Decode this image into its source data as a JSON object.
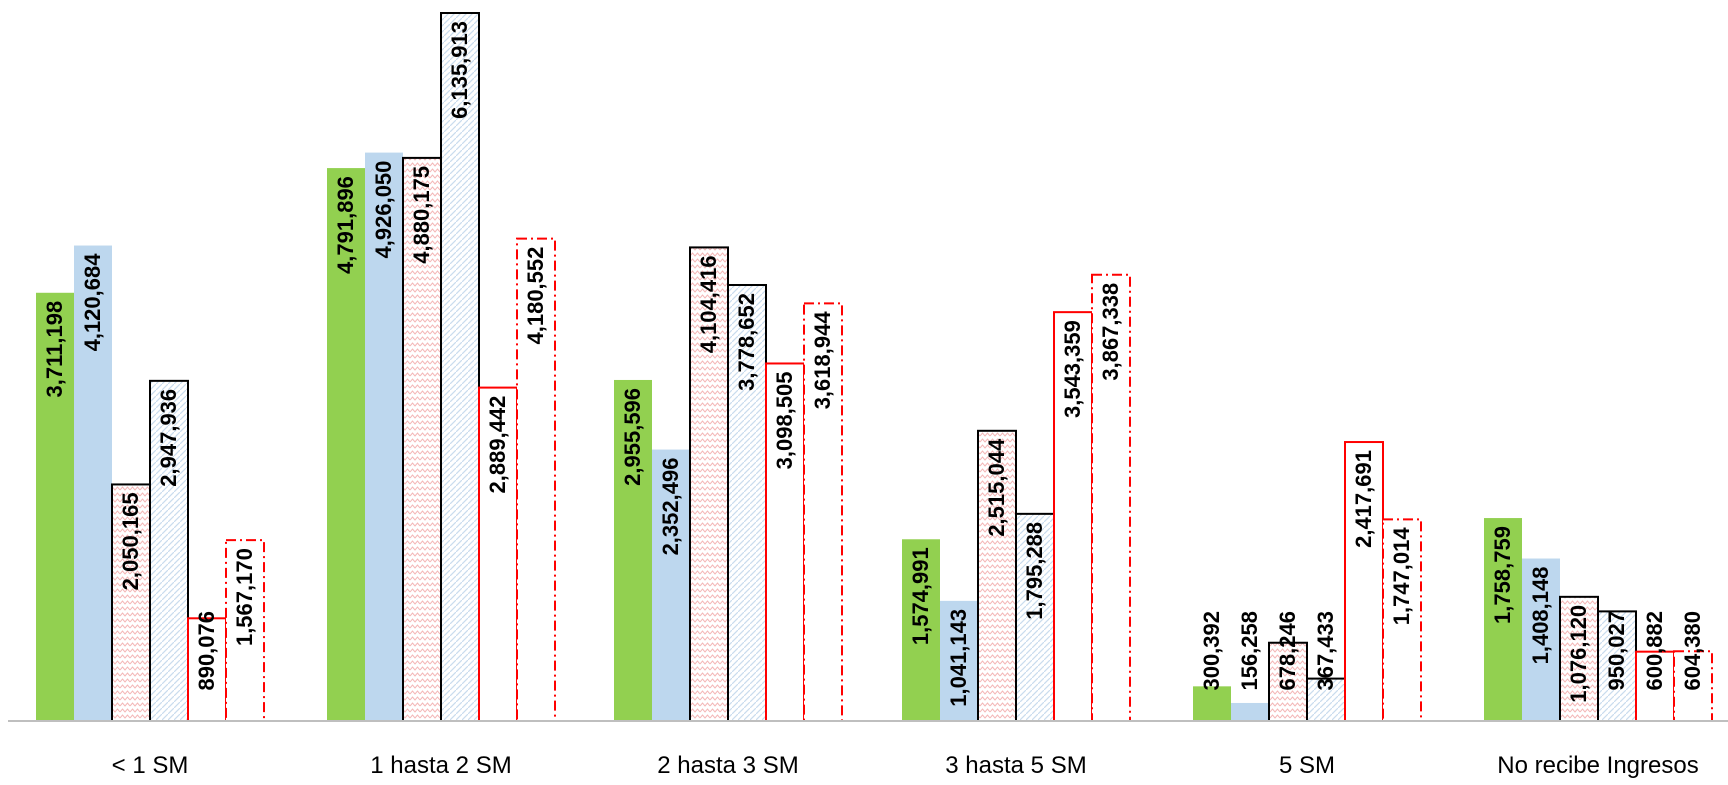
{
  "chart_data": {
    "type": "bar",
    "title": "",
    "xlabel": "",
    "ylabel": "",
    "ylim": [
      0,
      7000000
    ],
    "grid": false,
    "legend": "none",
    "categories": [
      "< 1 SM",
      "1 hasta 2 SM",
      "2 hasta 3 SM",
      "3 hasta 5 SM",
      "5 SM",
      "No recibe Ingresos"
    ],
    "series": [
      {
        "values": [
          3711198,
          4791896,
          2955596,
          1574991,
          300392,
          1758759
        ],
        "labels": [
          "3,711,198",
          "4,791,896",
          "2,955,596",
          "1,574,991",
          "300,392",
          "1,758,759"
        ],
        "fill": "#92d050",
        "fill_style": "solid",
        "stroke": "none",
        "dash": "none"
      },
      {
        "values": [
          4120684,
          4926050,
          2352496,
          1041143,
          156258,
          1408148
        ],
        "labels": [
          "4,120,684",
          "4,926,050",
          "2,352,496",
          "1,041,143",
          "156,258",
          "1,408,148"
        ],
        "fill": "#bdd7ee",
        "fill_style": "solid",
        "stroke": "none",
        "dash": "none"
      },
      {
        "values": [
          2050165,
          4880175,
          4104416,
          2515044,
          678246,
          1076120
        ],
        "labels": [
          "2,050,165",
          "4,880,175",
          "4,104,416",
          "2,515,044",
          "678,246",
          "1,076,120"
        ],
        "fill": "#f8cbad",
        "fill_style": "zigzag",
        "stroke": "#000000",
        "dash": "none"
      },
      {
        "values": [
          2947936,
          6135913,
          3778652,
          1795288,
          367433,
          950027
        ],
        "labels": [
          "2,947,936",
          "6,135,913",
          "3,778,652",
          "1,795,288",
          "367,433",
          "950,027"
        ],
        "fill": "#bdd7ee",
        "fill_style": "diagonal",
        "stroke": "#000000",
        "dash": "none"
      },
      {
        "values": [
          890076,
          2889442,
          3098505,
          3543359,
          2417691,
          600882
        ],
        "labels": [
          "890,076",
          "2,889,442",
          "3,098,505",
          "3,543,359",
          "2,417,691",
          "600,882"
        ],
        "fill": "#ffffff",
        "fill_style": "none",
        "stroke": "#ff0000",
        "dash": "none"
      },
      {
        "values": [
          1567170,
          4180552,
          3618944,
          3867338,
          1747014,
          604380
        ],
        "labels": [
          "1,567,170",
          "4,180,552",
          "3,618,944",
          "3,867,338",
          "1,747,014",
          "604,380"
        ],
        "fill": "#ffffff",
        "fill_style": "none",
        "stroke": "#ff0000",
        "dash": "dash-dot"
      }
    ],
    "axis_color": "#bfbfbf"
  }
}
